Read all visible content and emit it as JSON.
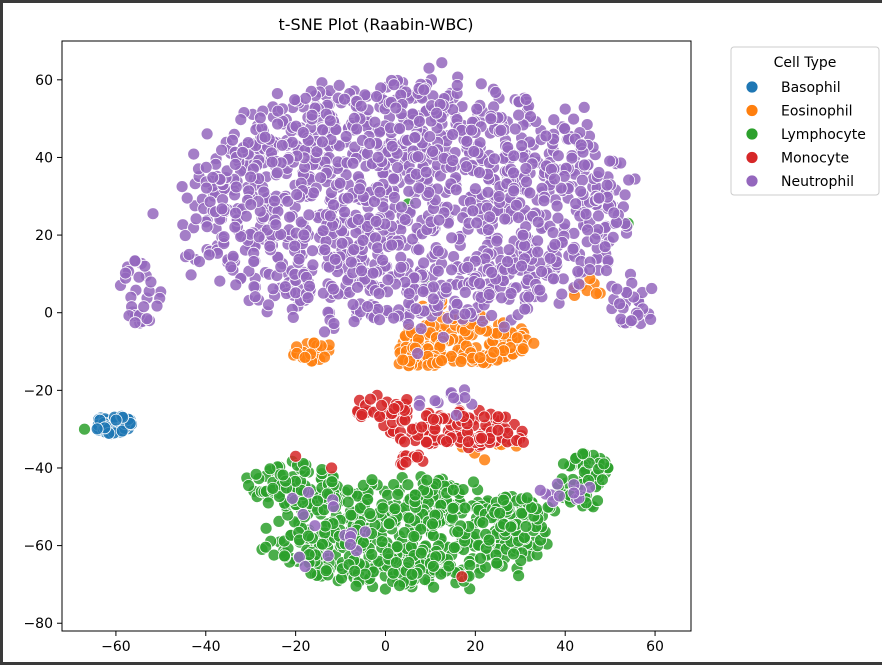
{
  "chart_data": {
    "type": "scatter",
    "title": "t-SNE Plot (Raabin-WBC)",
    "xlabel": "",
    "ylabel": "",
    "xlim": [
      -72,
      68
    ],
    "ylim": [
      -82,
      70
    ],
    "xticks": [
      -60,
      -40,
      -20,
      0,
      20,
      40,
      60
    ],
    "yticks": [
      60,
      40,
      20,
      0,
      -20,
      -40,
      -60,
      -80
    ],
    "xtick_labels": [
      "−60",
      "−40",
      "−20",
      "0",
      "20",
      "40",
      "60"
    ],
    "ytick_labels": [
      "60",
      "40",
      "20",
      "0",
      "−20",
      "−40",
      "−60",
      "−80"
    ],
    "grid": false,
    "legend": {
      "title": "Cell Type",
      "placement": "outside-top-right"
    },
    "series": [
      {
        "name": "Basophil",
        "color": "#1f77b4",
        "clusters": [
          {
            "cx": -60.5,
            "cy": -29,
            "rx": 4.5,
            "ry": 2.6,
            "n": 45
          }
        ]
      },
      {
        "name": "Eosinophil",
        "color": "#ff7f0e",
        "clusters": [
          {
            "cx": 18,
            "cy": -7,
            "rx": 14,
            "ry": 6,
            "n": 170
          },
          {
            "cx": 7,
            "cy": -12,
            "rx": 5,
            "ry": 3,
            "n": 30
          },
          {
            "cx": -16,
            "cy": -10,
            "rx": 5,
            "ry": 3,
            "n": 22
          },
          {
            "cx": 10,
            "cy": 3,
            "rx": 3,
            "ry": 3,
            "n": 12
          },
          {
            "cx": 46,
            "cy": 6,
            "rx": 4,
            "ry": 3,
            "n": 8
          },
          {
            "cx": 22,
            "cy": -35,
            "rx": 10,
            "ry": 6,
            "n": 8
          }
        ]
      },
      {
        "name": "Lymphocyte",
        "color": "#2ca02c",
        "clusters": [
          {
            "cx": 5,
            "cy": -57,
            "rx": 30,
            "ry": 14,
            "n": 560
          },
          {
            "cx": -20,
            "cy": -44,
            "rx": 10,
            "ry": 6,
            "n": 70
          },
          {
            "cx": 44,
            "cy": -43,
            "rx": 6,
            "ry": 7,
            "n": 60
          },
          {
            "cx": 30,
            "cy": -52,
            "rx": 8,
            "ry": 5,
            "n": 50
          },
          {
            "cx": -67,
            "cy": -30,
            "rx": 1,
            "ry": 1,
            "n": 1
          },
          {
            "cx": 54,
            "cy": 23,
            "rx": 1,
            "ry": 1,
            "n": 1
          },
          {
            "cx": 5,
            "cy": 28,
            "rx": 1,
            "ry": 1,
            "n": 1
          },
          {
            "cx": 9,
            "cy": 7,
            "rx": 1,
            "ry": 1,
            "n": 1
          }
        ]
      },
      {
        "name": "Monocyte",
        "color": "#d62728",
        "clusters": [
          {
            "cx": 15,
            "cy": -30,
            "rx": 15,
            "ry": 5,
            "n": 110
          },
          {
            "cx": 0,
            "cy": -25,
            "rx": 7,
            "ry": 4,
            "n": 30
          },
          {
            "cx": 6,
            "cy": -38,
            "rx": 4,
            "ry": 2,
            "n": 10
          },
          {
            "cx": 26,
            "cy": -32,
            "rx": 6,
            "ry": 2,
            "n": 15
          },
          {
            "cx": 17,
            "cy": -68,
            "rx": 1,
            "ry": 1,
            "n": 1
          },
          {
            "cx": -20,
            "cy": -37,
            "rx": 1,
            "ry": 1,
            "n": 1
          },
          {
            "cx": -12,
            "cy": -40,
            "rx": 1,
            "ry": 1,
            "n": 1
          }
        ]
      },
      {
        "name": "Neutrophil",
        "color": "#9467bd",
        "clusters": [
          {
            "cx": 5,
            "cy": 28,
            "rx": 48,
            "ry": 31,
            "n": 1500
          },
          {
            "cx": -55,
            "cy": 5,
            "rx": 5,
            "ry": 10,
            "n": 30
          },
          {
            "cx": 55,
            "cy": 3,
            "rx": 5,
            "ry": 7,
            "n": 30
          },
          {
            "cx": 14,
            "cy": -23,
            "rx": 8,
            "ry": 3,
            "n": 12
          },
          {
            "cx": 40,
            "cy": -46,
            "rx": 6,
            "ry": 3,
            "n": 12
          },
          {
            "cx": -15,
            "cy": -55,
            "rx": 10,
            "ry": 10,
            "n": 15
          }
        ]
      }
    ]
  }
}
